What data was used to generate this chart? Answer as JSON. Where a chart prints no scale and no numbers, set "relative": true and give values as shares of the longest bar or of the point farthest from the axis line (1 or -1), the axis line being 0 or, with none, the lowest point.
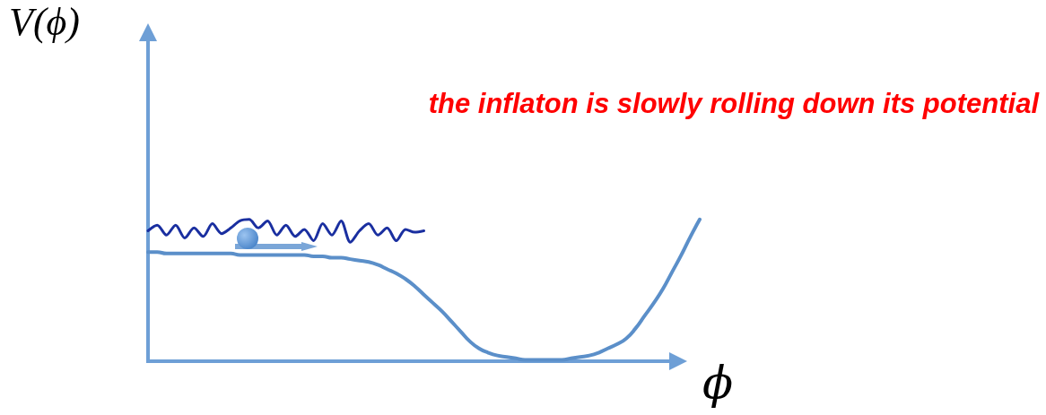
{
  "chart_data": {
    "type": "line",
    "relative": true,
    "xlabel": "ϕ",
    "ylabel": "V(ϕ)",
    "annotations": [
      "the inflaton is slowly rolling down its potential"
    ],
    "categories": [
      null,
      null,
      null,
      null,
      null,
      null,
      null,
      null,
      null,
      null,
      null,
      null,
      null,
      null,
      null,
      null,
      null,
      null,
      null,
      null,
      null,
      null,
      null,
      null,
      null,
      null,
      null,
      null,
      null,
      null,
      null,
      null,
      null,
      null,
      null,
      null,
      null,
      null,
      null,
      null,
      null,
      null,
      null,
      null,
      null,
      null,
      null,
      null,
      null,
      null,
      null,
      null,
      null,
      null,
      null,
      null,
      null,
      null,
      null,
      null,
      null
    ],
    "series": [
      {
        "color": "#5b8fc9",
        "values": [
          0.77,
          0.77,
          0.76,
          0.76,
          0.76,
          0.76,
          0.76,
          0.76,
          0.76,
          0.76,
          0.75,
          0.75,
          0.75,
          0.75,
          0.75,
          0.75,
          0.75,
          0.75,
          0.74,
          0.74,
          0.73,
          0.73,
          0.72,
          0.71,
          0.7,
          0.68,
          0.65,
          0.62,
          0.58,
          0.53,
          0.47,
          0.41,
          0.35,
          0.28,
          0.21,
          0.14,
          0.09,
          0.06,
          0.04,
          0.03,
          0.02,
          0.01,
          0.01,
          0.01,
          0.01,
          0.01,
          0.02,
          0.03,
          0.04,
          0.06,
          0.09,
          0.12,
          0.16,
          0.23,
          0.32,
          0.41,
          0.51,
          0.63,
          0.75,
          0.88,
          1
        ]
      },
      {
        "color": "#1a2fa0",
        "values": [
          0.92,
          0.96,
          0.89,
          0.96,
          0.87,
          0.94,
          0.88,
          0.97,
          0.9,
          0.94,
          0.99,
          1.0,
          0.94,
          0.99,
          0.89,
          0.96,
          0.88,
          0.93,
          0.85,
          0.97,
          0.89,
          0.99,
          0.84,
          0.92,
          0.97,
          0.89,
          0.94,
          0.85,
          0.93,
          0.91,
          0.92,
          null,
          null,
          null,
          null,
          null,
          null,
          null,
          null,
          null,
          null,
          null,
          null,
          null,
          null,
          null,
          null,
          null,
          null,
          null,
          null,
          null,
          null,
          null,
          null,
          null,
          null,
          null,
          null,
          null,
          null
        ]
      }
    ],
    "grid": false
  }
}
